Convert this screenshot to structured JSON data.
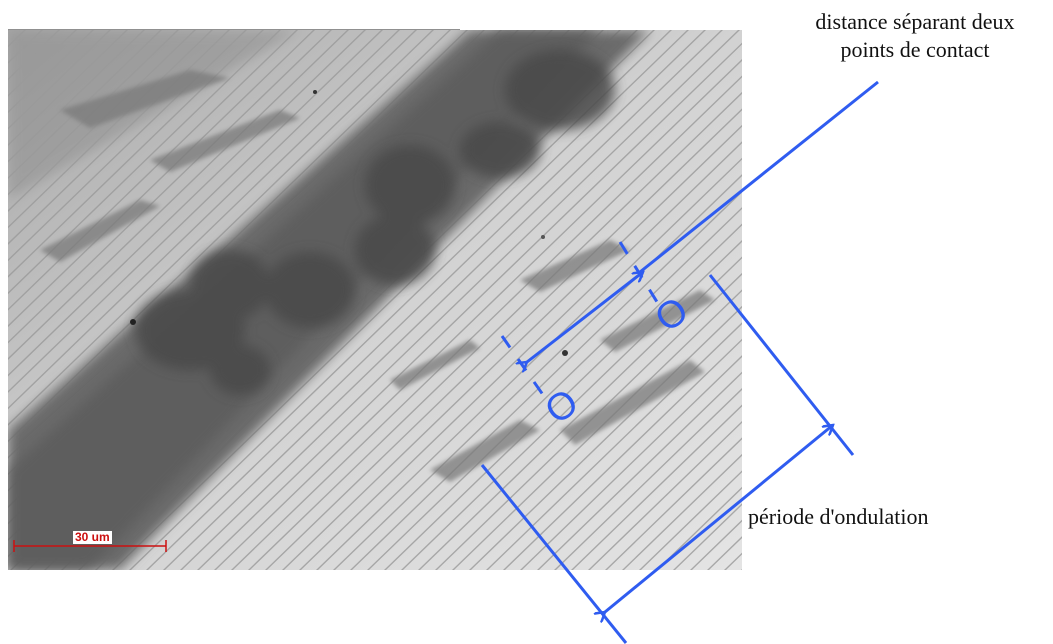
{
  "annotations": {
    "contact_distance_label_line1": "distance séparant deux",
    "contact_distance_label_line2": "points de contact",
    "period_label": "période d'ondulation",
    "contact_marker_symbol": "O"
  },
  "scale_bar": {
    "label": "30 um",
    "color": "#cc1010"
  },
  "colors": {
    "annotation_blue": "#2f5cf0",
    "scale_red": "#cc1010"
  }
}
